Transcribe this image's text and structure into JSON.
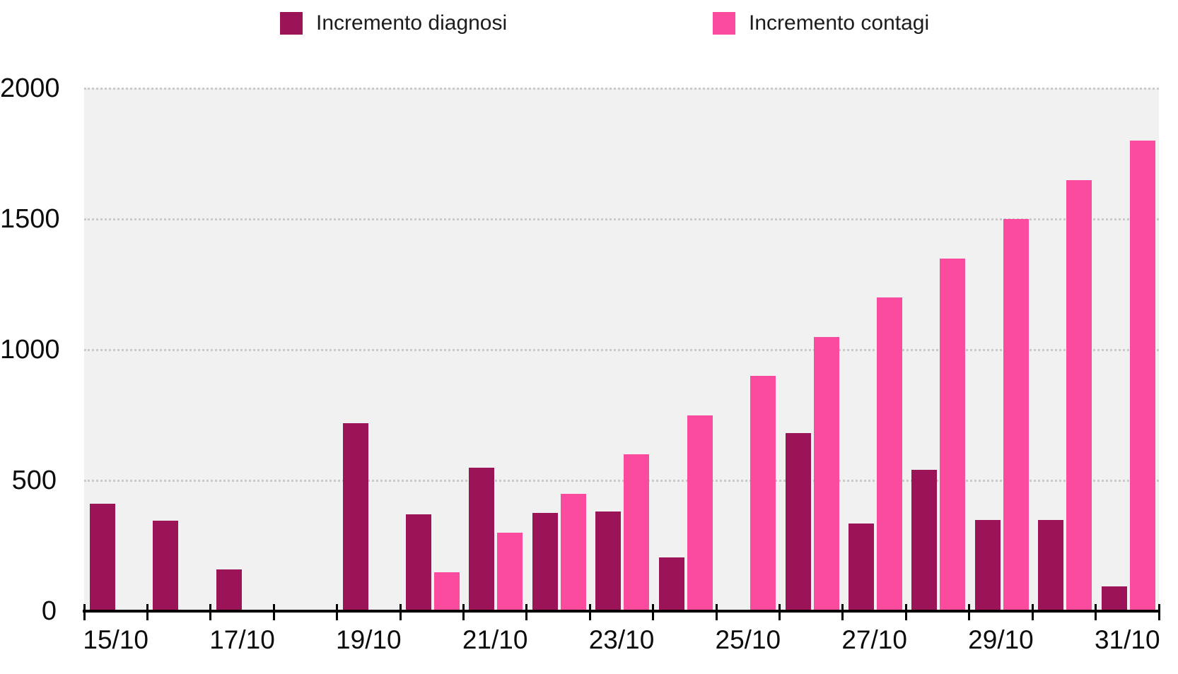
{
  "legend": {
    "items": [
      {
        "label": "Incremento diagnosi",
        "color": "#9a1457"
      },
      {
        "label": "Incremento contagi",
        "color": "#fb4b9f"
      }
    ]
  },
  "chart_data": {
    "type": "bar",
    "title": "",
    "xlabel": "",
    "ylabel": "",
    "categories": [
      "15/10",
      "16/10",
      "17/10",
      "18/10",
      "19/10",
      "20/10",
      "21/10",
      "22/10",
      "23/10",
      "24/10",
      "25/10",
      "26/10",
      "27/10",
      "28/10",
      "29/10",
      "30/10",
      "31/10"
    ],
    "series": [
      {
        "name": "Incremento diagnosi",
        "color": "#9a1457",
        "values": [
          410,
          345,
          160,
          null,
          720,
          370,
          550,
          375,
          380,
          205,
          null,
          680,
          335,
          540,
          350,
          350,
          95
        ]
      },
      {
        "name": "Incremento contagi",
        "color": "#fb4b9f",
        "values": [
          null,
          null,
          null,
          null,
          null,
          150,
          300,
          450,
          600,
          750,
          900,
          1050,
          1200,
          1350,
          1500,
          1650,
          1800
        ]
      }
    ],
    "ylim": [
      0,
      2000
    ],
    "yticks": [
      0,
      500,
      1000,
      1500,
      2000
    ],
    "ytick_labels": [
      "0",
      "500",
      "1000",
      "1500",
      "2000"
    ],
    "xtick_labels_shown": [
      "15/10",
      "17/10",
      "19/10",
      "21/10",
      "23/10",
      "25/10",
      "27/10",
      "29/10",
      "31/10"
    ],
    "grid": "horizontal-dotted",
    "legend_position": "top",
    "plot_background": "#f2f1f2",
    "axis_color": "#000000"
  }
}
